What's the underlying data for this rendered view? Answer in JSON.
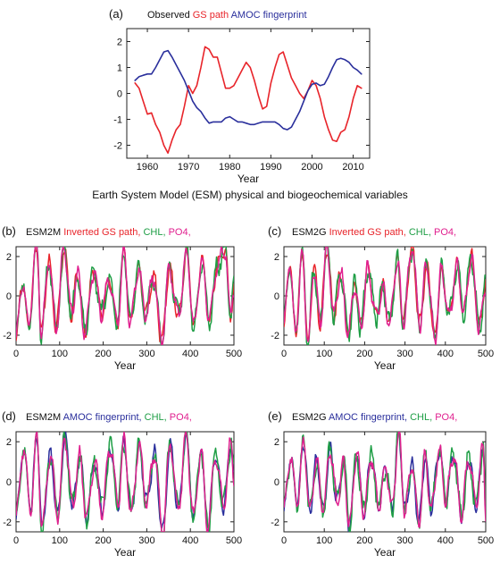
{
  "figure_caption": "Earth System Model (ESM) physical and biogeochemical variables",
  "colors": {
    "red": "#e8242a",
    "blue": "#2a2f9c",
    "green": "#1e9e45",
    "magenta": "#e0208f",
    "black": "#1a1a1a"
  },
  "chart_data": [
    {
      "panel": "(a)",
      "type": "line",
      "legend": [
        {
          "prefix": "Observed",
          "name": "GS path",
          "color": "red"
        },
        {
          "prefix": "",
          "name": "AMOC fingerprint",
          "color": "blue"
        }
      ],
      "xlabel": "Year",
      "xlim": [
        1955,
        2014
      ],
      "ylim": [
        -2.5,
        2.5
      ],
      "xticks": [
        1960,
        1970,
        1980,
        1990,
        2000,
        2010
      ],
      "yticks": [
        -2,
        -1,
        0,
        1,
        2
      ],
      "series": [
        {
          "name": "GS path",
          "color": "red",
          "x": [
            1957,
            1958,
            1959,
            1960,
            1961,
            1962,
            1963,
            1964,
            1965,
            1966,
            1967,
            1968,
            1969,
            1970,
            1971,
            1972,
            1973,
            1974,
            1975,
            1976,
            1977,
            1978,
            1979,
            1980,
            1981,
            1982,
            1983,
            1984,
            1985,
            1986,
            1987,
            1988,
            1989,
            1990,
            1991,
            1992,
            1993,
            1994,
            1995,
            1996,
            1997,
            1998,
            1999,
            2000,
            2001,
            2002,
            2003,
            2004,
            2005,
            2006,
            2007,
            2008,
            2009,
            2010,
            2011,
            2012
          ],
          "y": [
            0.4,
            0.2,
            -0.3,
            -0.8,
            -0.75,
            -1.2,
            -1.5,
            -2.0,
            -2.3,
            -1.8,
            -1.4,
            -1.2,
            -0.5,
            0.3,
            0.0,
            0.3,
            1.0,
            1.8,
            1.7,
            1.4,
            1.4,
            0.8,
            0.2,
            0.2,
            0.3,
            0.6,
            0.9,
            1.2,
            1.0,
            0.5,
            -0.1,
            -0.6,
            -0.5,
            0.4,
            1.0,
            1.5,
            1.6,
            1.1,
            0.6,
            0.3,
            0.0,
            -0.2,
            0.1,
            0.5,
            0.3,
            -0.2,
            -0.9,
            -1.4,
            -1.8,
            -1.85,
            -1.5,
            -1.4,
            -0.9,
            -0.2,
            0.3,
            0.2
          ]
        },
        {
          "name": "AMOC fingerprint",
          "color": "blue",
          "x": [
            1957,
            1958,
            1959,
            1960,
            1961,
            1962,
            1963,
            1964,
            1965,
            1966,
            1967,
            1968,
            1969,
            1970,
            1971,
            1972,
            1973,
            1974,
            1975,
            1976,
            1977,
            1978,
            1979,
            1980,
            1981,
            1982,
            1983,
            1984,
            1985,
            1986,
            1987,
            1988,
            1989,
            1990,
            1991,
            1992,
            1993,
            1994,
            1995,
            1996,
            1997,
            1998,
            1999,
            2000,
            2001,
            2002,
            2003,
            2004,
            2005,
            2006,
            2007,
            2008,
            2009,
            2010,
            2011,
            2012
          ],
          "y": [
            0.5,
            0.65,
            0.7,
            0.75,
            0.75,
            1.0,
            1.3,
            1.6,
            1.65,
            1.4,
            1.1,
            0.8,
            0.5,
            0.1,
            -0.3,
            -0.55,
            -0.7,
            -0.95,
            -1.15,
            -1.1,
            -1.1,
            -1.1,
            -0.95,
            -0.9,
            -1.0,
            -1.1,
            -1.1,
            -1.15,
            -1.2,
            -1.2,
            -1.15,
            -1.1,
            -1.1,
            -1.1,
            -1.1,
            -1.2,
            -1.35,
            -1.4,
            -1.3,
            -1.0,
            -0.7,
            -0.3,
            0.1,
            0.35,
            0.4,
            0.3,
            0.35,
            0.65,
            1.0,
            1.3,
            1.35,
            1.3,
            1.2,
            1.0,
            0.9,
            0.75
          ]
        }
      ]
    },
    {
      "panel": "(b)",
      "model": "ESM2M",
      "type": "line",
      "legend": [
        {
          "name": "Inverted GS path,",
          "color": "red"
        },
        {
          "name": "CHL,",
          "color": "green"
        },
        {
          "name": "PO4,",
          "color": "magenta"
        }
      ],
      "xlabel": "Year",
      "xlim": [
        0,
        500
      ],
      "ylim": [
        -2.5,
        2.5
      ],
      "xticks": [
        0,
        100,
        200,
        300,
        400,
        500
      ],
      "yticks": [
        -2,
        0,
        2
      ],
      "series_note": "three highly correlated ~500-year model time series with peaks near ±2.5",
      "anchors": [
        [
          0,
          -2.2
        ],
        [
          14,
          0.8
        ],
        [
          28,
          -1.5
        ],
        [
          48,
          2.5
        ],
        [
          58,
          -2.0
        ],
        [
          75,
          1.8
        ],
        [
          92,
          -1.6
        ],
        [
          110,
          2.4
        ],
        [
          128,
          -1.0
        ],
        [
          140,
          1.2
        ],
        [
          158,
          -1.8
        ],
        [
          178,
          1.3
        ],
        [
          196,
          -0.9
        ],
        [
          214,
          0.9
        ],
        [
          232,
          -1.4
        ],
        [
          248,
          2.3
        ],
        [
          262,
          -1.5
        ],
        [
          280,
          1.4
        ],
        [
          298,
          -0.9
        ],
        [
          316,
          1.0
        ],
        [
          334,
          -2.3
        ],
        [
          352,
          1.4
        ],
        [
          372,
          -1.0
        ],
        [
          392,
          2.2
        ],
        [
          408,
          -1.6
        ],
        [
          426,
          1.8
        ],
        [
          444,
          -1.2
        ],
        [
          462,
          1.6
        ],
        [
          480,
          2.4
        ],
        [
          492,
          -1.0
        ],
        [
          500,
          0.4
        ]
      ]
    },
    {
      "panel": "(c)",
      "model": "ESM2G",
      "type": "line",
      "legend": [
        {
          "name": "Inverted GS path,",
          "color": "red"
        },
        {
          "name": "CHL,",
          "color": "green"
        },
        {
          "name": "PO4,",
          "color": "magenta"
        }
      ],
      "xlabel": "Year",
      "xlim": [
        0,
        500
      ],
      "ylim": [
        -2.5,
        2.5
      ],
      "xticks": [
        0,
        100,
        200,
        300,
        400,
        500
      ],
      "yticks": [
        -2,
        0,
        2
      ],
      "anchors": [
        [
          0,
          -1.5
        ],
        [
          14,
          1.8
        ],
        [
          28,
          -1.8
        ],
        [
          46,
          2.0
        ],
        [
          60,
          -2.5
        ],
        [
          74,
          1.4
        ],
        [
          90,
          -1.4
        ],
        [
          106,
          2.5
        ],
        [
          124,
          -1.0
        ],
        [
          140,
          1.2
        ],
        [
          160,
          -1.9
        ],
        [
          176,
          0.6
        ],
        [
          190,
          -1.6
        ],
        [
          208,
          1.4
        ],
        [
          228,
          -1.0
        ],
        [
          246,
          0.4
        ],
        [
          262,
          -1.5
        ],
        [
          280,
          1.8
        ],
        [
          296,
          -1.2
        ],
        [
          318,
          2.5
        ],
        [
          336,
          -1.4
        ],
        [
          354,
          1.6
        ],
        [
          374,
          -2.2
        ],
        [
          390,
          1.3
        ],
        [
          410,
          -1.0
        ],
        [
          428,
          1.5
        ],
        [
          446,
          -0.8
        ],
        [
          464,
          2.0
        ],
        [
          484,
          -1.6
        ],
        [
          500,
          0.6
        ]
      ]
    },
    {
      "panel": "(d)",
      "model": "ESM2M",
      "type": "line",
      "legend": [
        {
          "name": "AMOC fingerprint,",
          "color": "blue"
        },
        {
          "name": "CHL,",
          "color": "green"
        },
        {
          "name": "PO4,",
          "color": "magenta"
        }
      ],
      "xlabel": "Year",
      "xlim": [
        0,
        500
      ],
      "ylim": [
        -2.5,
        2.5
      ],
      "xticks": [
        0,
        100,
        200,
        300,
        400,
        500
      ],
      "yticks": [
        -2,
        0,
        2
      ],
      "anchors": [
        [
          0,
          -1.8
        ],
        [
          16,
          1.6
        ],
        [
          34,
          -1.2
        ],
        [
          48,
          2.3
        ],
        [
          60,
          -2.4
        ],
        [
          78,
          1.4
        ],
        [
          96,
          -1.6
        ],
        [
          112,
          2.2
        ],
        [
          130,
          -1.2
        ],
        [
          146,
          1.3
        ],
        [
          162,
          -1.8
        ],
        [
          180,
          1.0
        ],
        [
          198,
          -1.4
        ],
        [
          216,
          1.8
        ],
        [
          234,
          -1.0
        ],
        [
          248,
          2.0
        ],
        [
          264,
          -1.6
        ],
        [
          282,
          1.8
        ],
        [
          300,
          -1.0
        ],
        [
          318,
          1.4
        ],
        [
          336,
          -2.5
        ],
        [
          354,
          1.8
        ],
        [
          372,
          -1.4
        ],
        [
          390,
          2.2
        ],
        [
          408,
          -1.8
        ],
        [
          424,
          1.6
        ],
        [
          440,
          -2.3
        ],
        [
          458,
          1.4
        ],
        [
          476,
          -1.2
        ],
        [
          494,
          2.0
        ],
        [
          500,
          0.2
        ]
      ]
    },
    {
      "panel": "(e)",
      "model": "ESM2G",
      "type": "line",
      "legend": [
        {
          "name": "AMOC fingerprint,",
          "color": "blue"
        },
        {
          "name": "CHL,",
          "color": "green"
        },
        {
          "name": "PO4,",
          "color": "magenta"
        }
      ],
      "xlabel": "Year",
      "xlim": [
        0,
        500
      ],
      "ylim": [
        -2.5,
        2.5
      ],
      "xticks": [
        0,
        100,
        200,
        300,
        400,
        500
      ],
      "yticks": [
        -2,
        0,
        2
      ],
      "anchors": [
        [
          0,
          -1.4
        ],
        [
          16,
          1.2
        ],
        [
          32,
          -1.0
        ],
        [
          50,
          2.0
        ],
        [
          64,
          -1.5
        ],
        [
          80,
          1.0
        ],
        [
          98,
          -1.4
        ],
        [
          114,
          1.6
        ],
        [
          132,
          -1.0
        ],
        [
          148,
          1.0
        ],
        [
          162,
          -2.3
        ],
        [
          180,
          1.4
        ],
        [
          198,
          -1.6
        ],
        [
          216,
          1.2
        ],
        [
          236,
          -1.2
        ],
        [
          252,
          0.8
        ],
        [
          268,
          -1.4
        ],
        [
          284,
          2.4
        ],
        [
          300,
          -1.4
        ],
        [
          318,
          0.8
        ],
        [
          334,
          -2.0
        ],
        [
          350,
          1.2
        ],
        [
          366,
          -1.4
        ],
        [
          384,
          1.6
        ],
        [
          402,
          -0.8
        ],
        [
          420,
          1.4
        ],
        [
          440,
          -1.6
        ],
        [
          458,
          1.2
        ],
        [
          476,
          -1.2
        ],
        [
          494,
          1.8
        ],
        [
          500,
          -1.6
        ]
      ]
    }
  ]
}
